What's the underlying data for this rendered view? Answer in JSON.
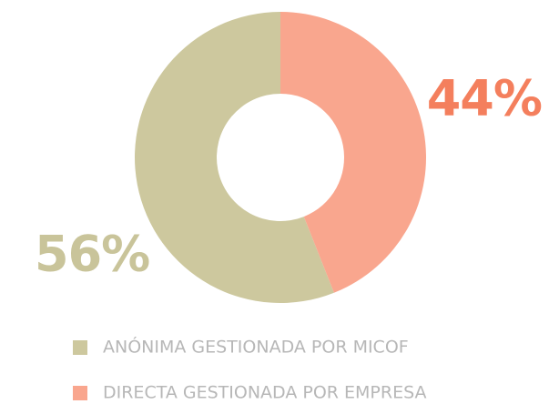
{
  "chart_data": {
    "type": "pie",
    "categories": [
      "ANÓNIMA GESTIONADA POR MICOF",
      "DIRECTA GESTIONADA POR EMPRESA"
    ],
    "values": [
      56,
      44
    ],
    "value_labels": [
      "56%",
      "44%"
    ],
    "colors": [
      "#cdc89e",
      "#f9a68e"
    ],
    "value_label_colors": [
      "#c9c49a",
      "#f47f5d"
    ]
  }
}
